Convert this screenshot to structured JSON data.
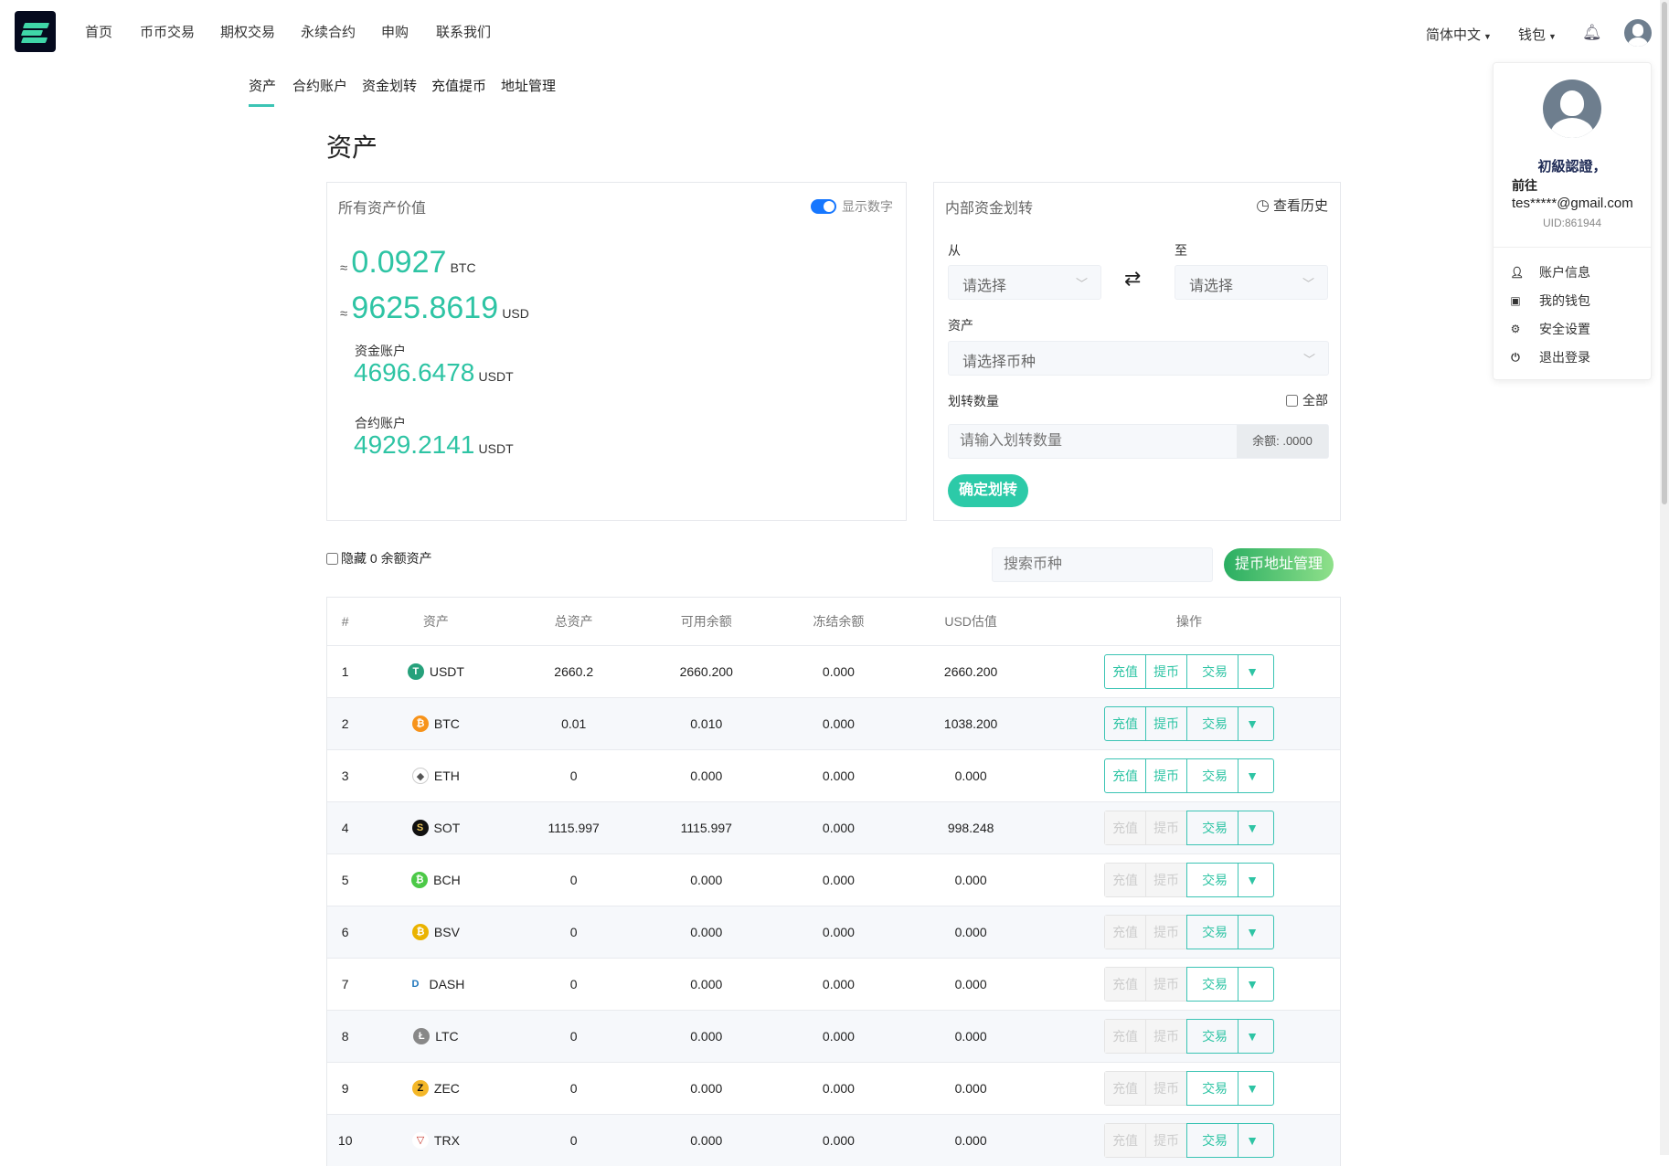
{
  "nav": {
    "items": [
      "首页",
      "币币交易",
      "期权交易",
      "永续合约",
      "申购",
      "联系我们"
    ],
    "language": "简体中文",
    "wallet": "钱包"
  },
  "subnav": {
    "items": [
      "资产",
      "合约账户",
      "资金划转",
      "充值提币",
      "地址管理"
    ],
    "active": "资产"
  },
  "page_title": "资产",
  "assets_card": {
    "title": "所有资产价值",
    "toggle_label": "显示数字",
    "toggle_on": true,
    "approx": "≈",
    "btc_value": "0.0927",
    "btc_unit": "BTC",
    "usd_value": "9625.8619",
    "usd_unit": "USD",
    "fund_label": "资金账户",
    "fund_value": "4696.6478",
    "fund_unit": "USDT",
    "contract_label": "合约账户",
    "contract_value": "4929.2141",
    "contract_unit": "USDT"
  },
  "transfer_card": {
    "title": "内部资金划转",
    "history": "查看历史",
    "from_label": "从",
    "to_label": "至",
    "from_placeholder": "请选择",
    "to_placeholder": "请选择",
    "asset_label": "资产",
    "asset_placeholder": "请选择币种",
    "amount_label": "划转数量",
    "all_label": "全部",
    "amount_placeholder": "请输入划转数量",
    "balance": "余额: .0000",
    "submit": "确定划转"
  },
  "filters": {
    "hide_zero": "隐藏 0 余额资产",
    "search_placeholder": "搜索币种",
    "address_btn": "提币地址管理"
  },
  "table": {
    "headers": [
      "#",
      "资产",
      "总资产",
      "可用余额",
      "冻结余额",
      "USD估值",
      "操作"
    ],
    "ops": {
      "deposit": "充值",
      "withdraw": "提币",
      "trade": "交易"
    },
    "rows": [
      {
        "n": "1",
        "coin": "USDT",
        "total": "2660.2",
        "avail": "2660.200",
        "frozen": "0.000",
        "usd": "2660.200",
        "enabled": true,
        "color": "#26a17b",
        "glyph": "T"
      },
      {
        "n": "2",
        "coin": "BTC",
        "total": "0.01",
        "avail": "0.010",
        "frozen": "0.000",
        "usd": "1038.200",
        "enabled": true,
        "color": "#f7931a",
        "glyph": "₿"
      },
      {
        "n": "3",
        "coin": "ETH",
        "total": "0",
        "avail": "0.000",
        "frozen": "0.000",
        "usd": "0.000",
        "enabled": true,
        "color": "#ffffff",
        "glyph": "◆"
      },
      {
        "n": "4",
        "coin": "SOT",
        "total": "1115.997",
        "avail": "1115.997",
        "frozen": "0.000",
        "usd": "998.248",
        "enabled": false,
        "color": "#111111",
        "glyph": "S"
      },
      {
        "n": "5",
        "coin": "BCH",
        "total": "0",
        "avail": "0.000",
        "frozen": "0.000",
        "usd": "0.000",
        "enabled": false,
        "color": "#4cc947",
        "glyph": "₿"
      },
      {
        "n": "6",
        "coin": "BSV",
        "total": "0",
        "avail": "0.000",
        "frozen": "0.000",
        "usd": "0.000",
        "enabled": false,
        "color": "#eab300",
        "glyph": "₿"
      },
      {
        "n": "7",
        "coin": "DASH",
        "total": "0",
        "avail": "0.000",
        "frozen": "0.000",
        "usd": "0.000",
        "enabled": false,
        "color": "#ffffff",
        "glyph": "D"
      },
      {
        "n": "8",
        "coin": "LTC",
        "total": "0",
        "avail": "0.000",
        "frozen": "0.000",
        "usd": "0.000",
        "enabled": false,
        "color": "#888888",
        "glyph": "Ł"
      },
      {
        "n": "9",
        "coin": "ZEC",
        "total": "0",
        "avail": "0.000",
        "frozen": "0.000",
        "usd": "0.000",
        "enabled": false,
        "color": "#f4b728",
        "glyph": "Z"
      },
      {
        "n": "10",
        "coin": "TRX",
        "total": "0",
        "avail": "0.000",
        "frozen": "0.000",
        "usd": "0.000",
        "enabled": false,
        "color": "#ffffff",
        "glyph": "▽"
      }
    ]
  },
  "user_menu": {
    "level": "初級認證，",
    "goto": "前往",
    "email": "tes*****@gmail.com",
    "uid": "UID:861944",
    "items": [
      {
        "label": "账户信息",
        "icon": "user-icon"
      },
      {
        "label": "我的钱包",
        "icon": "wallet-icon"
      },
      {
        "label": "安全设置",
        "icon": "gear-icon"
      },
      {
        "label": "退出登录",
        "icon": "power-icon"
      }
    ]
  },
  "colors": {
    "accent": "#2ec4a4",
    "toggle": "#1677ff"
  }
}
